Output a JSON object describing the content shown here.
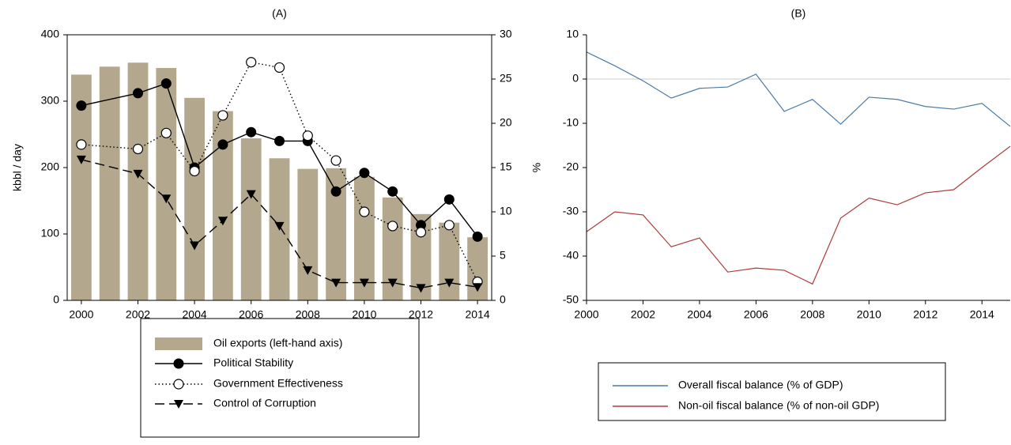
{
  "chart_data": [
    {
      "type": "combo",
      "title": "(A)",
      "ylabel": "kbbl / day",
      "x": [
        2000,
        2001,
        2002,
        2003,
        2004,
        2005,
        2006,
        2007,
        2008,
        2009,
        2010,
        2011,
        2012,
        2013,
        2014
      ],
      "xlim": [
        1999.5,
        2014.5
      ],
      "xticks": [
        2000,
        2002,
        2004,
        2006,
        2008,
        2010,
        2012,
        2014
      ],
      "ylim": [
        0,
        400
      ],
      "yticks": [
        0,
        100,
        200,
        300,
        400
      ],
      "y2lim": [
        0,
        30
      ],
      "y2ticks": [
        0,
        5,
        10,
        15,
        20,
        25,
        30
      ],
      "legend": "bottom",
      "series": [
        {
          "name": "Oil exports (left-hand axis)",
          "kind": "bar",
          "color": "#b3a78e",
          "values": [
            340,
            352,
            358,
            350,
            305,
            285,
            244,
            214,
            198,
            199,
            186,
            155,
            130,
            117,
            95
          ]
        },
        {
          "name": "Political Stability",
          "kind": "line",
          "axis": "y2",
          "color": "#000000",
          "line_style": "solid",
          "marker": "filled-circle",
          "x": [
            2000,
            2002,
            2003,
            2004,
            2005,
            2006,
            2007,
            2008,
            2009,
            2010,
            2011,
            2012,
            2013,
            2014
          ],
          "values": [
            22,
            23.4,
            24.5,
            15,
            17.6,
            19,
            18,
            18,
            12.3,
            14.4,
            12.3,
            8.5,
            11.4,
            7.2
          ]
        },
        {
          "name": "Government Effectiveness",
          "kind": "line",
          "axis": "y2",
          "color": "#000000",
          "line_style": "dotted",
          "marker": "open-circle",
          "x": [
            2000,
            2002,
            2003,
            2004,
            2005,
            2006,
            2007,
            2008,
            2009,
            2010,
            2011,
            2012,
            2013,
            2014
          ],
          "values": [
            17.6,
            17.1,
            18.9,
            14.6,
            20.9,
            26.9,
            26.3,
            18.6,
            15.8,
            10,
            8.4,
            7.7,
            8.5,
            2.1
          ]
        },
        {
          "name": "Control of Corruption",
          "kind": "line",
          "axis": "y2",
          "color": "#000000",
          "line_style": "dashed",
          "marker": "down-triangle",
          "x": [
            2000,
            2002,
            2003,
            2004,
            2005,
            2006,
            2007,
            2008,
            2009,
            2010,
            2011,
            2012,
            2013,
            2014
          ],
          "values": [
            15.9,
            14.3,
            11.5,
            6.2,
            9,
            12,
            8.4,
            3.4,
            2,
            2,
            2,
            1.4,
            2,
            1.5
          ]
        }
      ]
    },
    {
      "type": "line",
      "title": "(B)",
      "ylabel": "%",
      "x": [
        2000,
        2001,
        2002,
        2003,
        2004,
        2005,
        2006,
        2007,
        2008,
        2009,
        2010,
        2011,
        2012,
        2013,
        2014,
        2015
      ],
      "xlim": [
        2000,
        2015
      ],
      "xticks": [
        2000,
        2002,
        2004,
        2006,
        2008,
        2010,
        2012,
        2014
      ],
      "ylim": [
        -50,
        10
      ],
      "yticks": [
        -50,
        -40,
        -30,
        -20,
        -10,
        0,
        10
      ],
      "zero_line": true,
      "legend": "bottom",
      "series": [
        {
          "name": "Overall fiscal balance (% of GDP)",
          "kind": "line",
          "color": "#4a7ba7",
          "line_style": "solid",
          "values": [
            6.1,
            3,
            -0.4,
            -4.3,
            -2.1,
            -1.8,
            1.1,
            -7.3,
            -4.6,
            -10.2,
            -4.1,
            -4.6,
            -6.2,
            -6.8,
            -5.5,
            -10.7
          ]
        },
        {
          "name": "Non-oil fiscal balance (% of non-oil GDP)",
          "kind": "line",
          "color": "#b03a3a",
          "line_style": "solid",
          "values": [
            -34.5,
            -30,
            -30.7,
            -37.9,
            -35.9,
            -43.6,
            -42.7,
            -43.2,
            -46.3,
            -31.4,
            -26.9,
            -28.4,
            -25.7,
            -25,
            -20,
            -15.2
          ]
        }
      ]
    }
  ]
}
